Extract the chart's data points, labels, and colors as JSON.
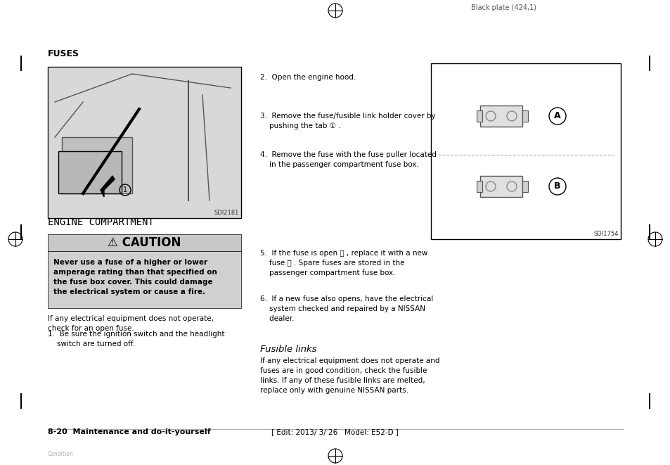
{
  "page_bg": "#ffffff",
  "header_text": "Black plate (424,1)",
  "header_color": "#555555",
  "fuses_title": "FUSES",
  "engine_comp_label": "ENGINE COMPARTMENT",
  "image1_caption": "SDI2181",
  "image2_caption": "SDI1754",
  "caution_header": "⚠ CAUTION",
  "caution_bg": "#cccccc",
  "caution_body_bg": "#cccccc",
  "caution_body": "Never use a fuse of a higher or lower\namperage rating than that specified on\nthe fuse box cover. This could damage\nthe electrical system or cause a fire.",
  "para1": "If any electrical equipment does not operate,\ncheck for an open fuse.",
  "item1": "1.  Be sure the ignition switch and the headlight\n    switch are turned off.",
  "items_right_col": [
    "2.  Open the engine hood.",
    "3.  Remove the fuse/fusible link holder cover by\n    pushing the tab ① .",
    "4.  Remove the fuse with the fuse puller located\n    in the passenger compartment fuse box."
  ],
  "items_right_col2": [
    "5.  If the fuse is open Ⓐ , replace it with a new\n    fuse Ⓑ . Spare fuses are stored in the\n    passenger compartment fuse box.",
    "6.  If a new fuse also opens, have the electrical\n    system checked and repaired by a NISSAN\n    dealer."
  ],
  "fusible_links_title": "Fusible links",
  "fusible_links_body": "If any electrical equipment does not operate and\nfuses are in good condition, check the fusible\nlinks. If any of these fusible links are melted,\nreplace only with genuine NISSAN parts.",
  "footer_left": "8-20  Maintenance and do-it-yourself",
  "footer_center": "[ Edit: 2013/ 3/ 26   Model: E52-D ]",
  "footer_bottom_left": "Condition",
  "crosshair_color": "#000000",
  "left_margin_lines": true,
  "right_margin_lines": true
}
